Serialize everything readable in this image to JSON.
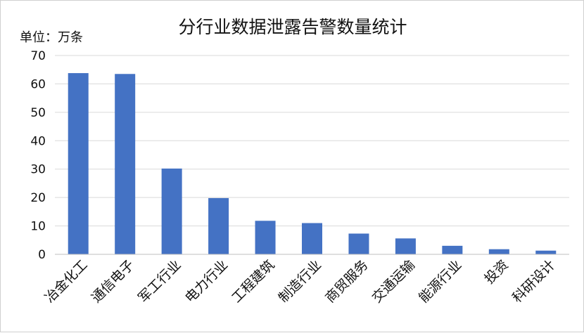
{
  "chart_data": {
    "type": "bar",
    "title": "分行业数据泄露告警数量统计",
    "unit_label": "单位：万条",
    "categories": [
      "冶金化工",
      "通信电子",
      "军工行业",
      "电力行业",
      "工程建筑",
      "制造行业",
      "商贸服务",
      "交通运输",
      "能源行业",
      "投资",
      "科研设计"
    ],
    "values": [
      63.8,
      63.5,
      30.2,
      19.8,
      11.8,
      11.0,
      7.3,
      5.6,
      3.0,
      1.8,
      1.3
    ],
    "ylim": [
      0,
      70
    ],
    "yticks": [
      0,
      10,
      20,
      30,
      40,
      50,
      60,
      70
    ],
    "grid": true,
    "bar_color": "#4472C4",
    "grid_color": "#d9d9d9"
  }
}
